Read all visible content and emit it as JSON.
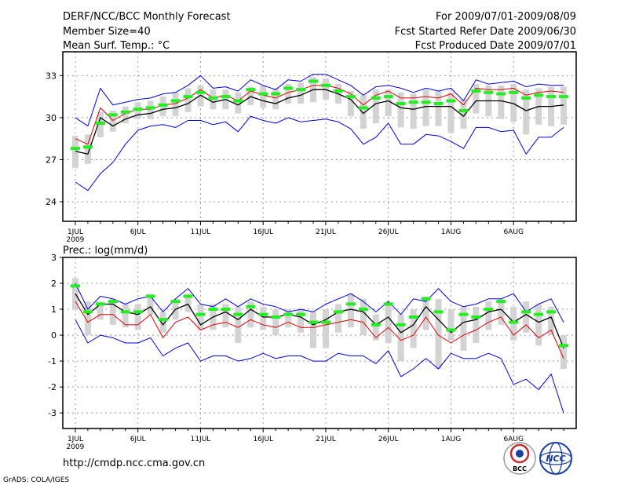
{
  "header": {
    "title": "DERF/NCC/BCC Monthly Forecast",
    "member_size": "Member Size=40",
    "variable": "Mean Surf. Temp.: °C",
    "period": "For 2009/07/01-2009/08/09",
    "start_date": "Fcst Started Refer Date 2009/06/30",
    "produced_date": "Fcst Produced Date 2009/07/01"
  },
  "footer": {
    "url": "http://cmdp.ncc.cma.gov.cn",
    "grads": "GrADS: COLA/IGES",
    "logo_bcc": "BCC",
    "logo_ncc": "NCC"
  },
  "x_ticks": [
    "1JUL",
    "6JUL",
    "11JUL",
    "16JUL",
    "21JUL",
    "26JUL",
    "1AUG",
    "6AUG"
  ],
  "x_year": "2009",
  "colors": {
    "box": "#d3d3d3",
    "median": "#22ee22",
    "minmax": "#0000dd",
    "mean": "#000000",
    "red": "#dd0000"
  },
  "chart_data": [
    {
      "type": "line",
      "title": "Mean Surf. Temp.: °C",
      "x": [
        1,
        2,
        3,
        4,
        5,
        6,
        7,
        8,
        9,
        10,
        11,
        12,
        13,
        14,
        15,
        16,
        17,
        18,
        19,
        20,
        21,
        22,
        23,
        24,
        25,
        26,
        27,
        28,
        29,
        30,
        31,
        32,
        33,
        34,
        35,
        36,
        37,
        38,
        39,
        40
      ],
      "xlim": [
        0,
        41
      ],
      "ylim": [
        22.6,
        34.7
      ],
      "yticks": [
        24,
        27,
        30,
        33
      ],
      "series": [
        {
          "name": "max",
          "values": [
            30.0,
            29.4,
            32.1,
            30.9,
            31.1,
            31.3,
            31.4,
            31.7,
            31.8,
            32.3,
            33.0,
            32.1,
            32.2,
            31.9,
            32.7,
            32.3,
            32.0,
            32.7,
            32.6,
            33.1,
            33.1,
            32.7,
            32.3,
            31.6,
            32.2,
            32.3,
            32.1,
            31.8,
            32.1,
            31.9,
            32.1,
            31.2,
            32.7,
            32.4,
            32.5,
            32.6,
            32.2,
            32.4,
            32.3,
            32.3
          ]
        },
        {
          "name": "min",
          "values": [
            25.4,
            24.8,
            26.0,
            26.8,
            28.1,
            29.1,
            29.4,
            29.5,
            29.3,
            29.8,
            29.8,
            29.5,
            29.7,
            29.0,
            30.1,
            29.8,
            29.6,
            30.0,
            29.7,
            29.8,
            29.9,
            29.7,
            29.2,
            28.1,
            28.6,
            29.6,
            28.1,
            28.1,
            28.8,
            28.7,
            28.3,
            27.8,
            29.3,
            29.3,
            29.0,
            29.1,
            27.4,
            28.6,
            28.6,
            29.3
          ]
        },
        {
          "name": "ensemble mean",
          "values": [
            27.6,
            27.4,
            30.0,
            29.4,
            29.9,
            30.2,
            30.3,
            30.6,
            30.7,
            31.0,
            31.6,
            31.1,
            31.3,
            30.9,
            31.5,
            31.2,
            31.0,
            31.4,
            31.6,
            32.0,
            32.0,
            31.7,
            31.3,
            30.3,
            31.0,
            31.2,
            30.7,
            30.6,
            30.8,
            30.8,
            30.8,
            30.1,
            31.2,
            31.2,
            31.2,
            31.0,
            30.5,
            30.8,
            30.8,
            30.9
          ]
        },
        {
          "name": "red",
          "values": [
            28.5,
            28.1,
            30.7,
            29.8,
            30.3,
            30.6,
            30.6,
            30.9,
            31.0,
            31.4,
            32.0,
            31.4,
            31.6,
            31.2,
            31.9,
            31.6,
            31.4,
            31.8,
            32.0,
            32.3,
            32.3,
            32.1,
            31.7,
            30.9,
            31.6,
            31.9,
            31.4,
            31.4,
            31.5,
            31.4,
            31.7,
            30.9,
            32.1,
            32.0,
            32.0,
            32.1,
            31.6,
            31.8,
            31.9,
            31.8
          ]
        },
        {
          "name": "box_low",
          "values": [
            26.4,
            26.7,
            28.6,
            29.0,
            29.6,
            29.9,
            29.9,
            30.1,
            30.1,
            30.4,
            30.8,
            30.6,
            30.6,
            30.3,
            30.9,
            30.7,
            30.6,
            31.0,
            31.0,
            31.1,
            31.3,
            31.0,
            30.1,
            29.2,
            29.6,
            30.1,
            29.3,
            29.2,
            29.4,
            29.4,
            28.9,
            29.2,
            30.3,
            30.1,
            29.9,
            29.7,
            28.8,
            29.5,
            29.4,
            29.5
          ]
        },
        {
          "name": "box_high",
          "values": [
            28.7,
            28.8,
            30.4,
            30.5,
            30.8,
            31.1,
            31.2,
            31.5,
            31.8,
            32.1,
            32.3,
            32.0,
            32.0,
            31.8,
            32.2,
            32.3,
            32.1,
            32.4,
            32.5,
            32.9,
            32.8,
            32.4,
            31.9,
            31.6,
            32.0,
            32.0,
            31.8,
            31.7,
            32.0,
            31.9,
            31.8,
            31.3,
            32.4,
            32.3,
            32.3,
            32.4,
            32.0,
            32.1,
            32.2,
            32.2
          ]
        },
        {
          "name": "median",
          "values": [
            27.8,
            27.9,
            29.6,
            30.2,
            30.4,
            30.6,
            30.7,
            30.9,
            31.2,
            31.5,
            31.8,
            31.4,
            31.5,
            31.2,
            32.0,
            31.7,
            31.7,
            32.1,
            32.0,
            32.6,
            32.3,
            31.9,
            31.5,
            30.7,
            31.4,
            31.5,
            31.0,
            31.1,
            31.1,
            31.0,
            31.2,
            30.5,
            31.9,
            31.8,
            31.7,
            31.8,
            31.4,
            31.6,
            31.5,
            31.5
          ]
        }
      ]
    },
    {
      "type": "line",
      "title": "Prec.: log(mm/d)",
      "x": [
        1,
        2,
        3,
        4,
        5,
        6,
        7,
        8,
        9,
        10,
        11,
        12,
        13,
        14,
        15,
        16,
        17,
        18,
        19,
        20,
        21,
        22,
        23,
        24,
        25,
        26,
        27,
        28,
        29,
        30,
        31,
        32,
        33,
        34,
        35,
        36,
        37,
        38,
        39,
        40
      ],
      "xlim": [
        0,
        41
      ],
      "ylim": [
        -3.6,
        3.0
      ],
      "yticks": [
        -3,
        -2,
        -1,
        0,
        1,
        2,
        3
      ],
      "series": [
        {
          "name": "max",
          "values": [
            2.0,
            1.0,
            1.5,
            1.4,
            1.2,
            1.4,
            1.5,
            0.9,
            1.4,
            1.8,
            1.2,
            1.1,
            1.4,
            1.1,
            1.4,
            1.2,
            1.1,
            0.9,
            1.0,
            0.9,
            1.2,
            1.4,
            1.6,
            1.3,
            0.9,
            1.3,
            0.8,
            1.4,
            1.3,
            1.8,
            1.3,
            1.1,
            1.2,
            1.4,
            1.4,
            1.6,
            0.9,
            1.2,
            1.4,
            0.5
          ]
        },
        {
          "name": "min",
          "values": [
            0.6,
            -0.3,
            0.0,
            -0.1,
            -0.3,
            -0.3,
            -0.1,
            -0.8,
            -0.5,
            -0.3,
            -1.0,
            -0.8,
            -0.8,
            -1.0,
            -0.9,
            -0.7,
            -0.9,
            -0.8,
            -0.8,
            -1.0,
            -1.0,
            -0.7,
            -0.8,
            -0.8,
            -1.1,
            -0.6,
            -1.6,
            -1.3,
            -0.9,
            -1.3,
            -0.7,
            -0.9,
            -0.9,
            -0.7,
            -0.9,
            -1.9,
            -1.7,
            -2.1,
            -1.5,
            -3.0
          ]
        },
        {
          "name": "ensemble mean",
          "values": [
            1.6,
            0.8,
            1.2,
            1.2,
            0.9,
            0.8,
            1.1,
            0.4,
            1.0,
            1.2,
            0.4,
            0.7,
            0.9,
            0.6,
            1.0,
            0.7,
            0.7,
            0.8,
            0.7,
            0.4,
            0.6,
            0.9,
            1.0,
            0.9,
            0.4,
            0.7,
            0.1,
            0.4,
            1.1,
            0.6,
            0.1,
            0.5,
            0.6,
            0.9,
            1.0,
            0.5,
            0.8,
            0.5,
            0.7,
            -0.5
          ]
        },
        {
          "name": "red",
          "values": [
            1.3,
            0.5,
            0.8,
            0.8,
            0.4,
            0.4,
            0.8,
            -0.1,
            0.5,
            0.7,
            0.2,
            0.4,
            0.5,
            0.3,
            0.6,
            0.4,
            0.3,
            0.5,
            0.3,
            0.3,
            0.4,
            0.5,
            0.6,
            0.5,
            -0.1,
            0.3,
            -0.2,
            0.0,
            0.7,
            0.0,
            -0.3,
            0.0,
            0.2,
            0.5,
            0.7,
            0.0,
            0.4,
            -0.1,
            0.2,
            -0.9
          ]
        },
        {
          "name": "box_low",
          "values": [
            1.0,
            0.0,
            0.6,
            0.4,
            0.3,
            0.2,
            0.8,
            0.1,
            0.6,
            0.9,
            0.2,
            0.2,
            0.3,
            -0.3,
            0.3,
            0.2,
            0.0,
            0.3,
            0.1,
            -0.5,
            -0.5,
            0.1,
            0.3,
            0.0,
            -0.2,
            -0.3,
            -1.0,
            -0.5,
            0.2,
            -1.3,
            -0.2,
            -0.6,
            -0.3,
            0.2,
            0.4,
            -0.2,
            0.1,
            -0.4,
            0.0,
            -1.3
          ]
        },
        {
          "name": "box_high",
          "values": [
            2.2,
            1.3,
            1.3,
            1.4,
            1.2,
            1.2,
            1.6,
            0.9,
            1.4,
            1.6,
            1.2,
            1.2,
            1.2,
            1.1,
            1.3,
            1.1,
            1.0,
            1.0,
            1.0,
            0.9,
            1.0,
            1.2,
            1.6,
            1.4,
            0.8,
            1.3,
            0.8,
            1.0,
            1.5,
            1.4,
            1.0,
            1.1,
            1.1,
            1.3,
            1.4,
            1.1,
            1.3,
            1.2,
            1.1,
            0.0
          ]
        },
        {
          "name": "median",
          "values": [
            1.9,
            0.9,
            1.2,
            1.3,
            0.9,
            0.9,
            1.5,
            0.6,
            1.3,
            1.5,
            0.8,
            1.0,
            1.0,
            0.8,
            1.1,
            0.8,
            0.7,
            0.8,
            0.8,
            0.5,
            0.5,
            0.9,
            1.2,
            1.0,
            0.4,
            1.2,
            0.4,
            0.7,
            1.4,
            0.9,
            0.2,
            0.8,
            0.7,
            1.0,
            1.3,
            0.5,
            0.9,
            0.8,
            0.9,
            -0.4
          ]
        }
      ]
    }
  ]
}
